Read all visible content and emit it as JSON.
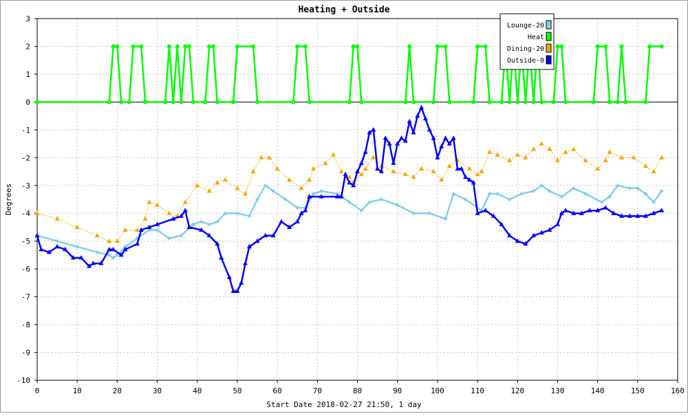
{
  "chart_data": {
    "type": "line",
    "title": "Heating + Outside",
    "xlabel": "Start Date 2018-02-27 21:50, 1 day",
    "ylabel": "Degrees",
    "xlim": [
      0,
      160
    ],
    "ylim": [
      -10,
      3
    ],
    "xticks": [
      0,
      10,
      20,
      30,
      40,
      50,
      60,
      70,
      80,
      90,
      100,
      110,
      120,
      130,
      140,
      150,
      160
    ],
    "yticks": [
      3,
      2,
      1,
      0,
      -1,
      -2,
      -3,
      -4,
      -5,
      -6,
      -7,
      -8,
      -9,
      -10
    ],
    "grid": true,
    "legend_position": "top-right",
    "series": [
      {
        "name": "Lounge-20",
        "color": "#87ceeb",
        "marker": "diamond",
        "line": "solid",
        "points": [
          [
            0,
            -4.8
          ],
          [
            5,
            -5.0
          ],
          [
            10,
            -5.2
          ],
          [
            15,
            -5.4
          ],
          [
            18,
            -5.5
          ],
          [
            19,
            -5.6
          ],
          [
            20,
            -5.5
          ],
          [
            22,
            -5.2
          ],
          [
            25,
            -4.9
          ],
          [
            28,
            -4.6
          ],
          [
            30,
            -4.6
          ],
          [
            33,
            -4.9
          ],
          [
            36,
            -4.8
          ],
          [
            39,
            -4.4
          ],
          [
            41,
            -4.3
          ],
          [
            43,
            -4.4
          ],
          [
            45,
            -4.3
          ],
          [
            47,
            -4.0
          ],
          [
            50,
            -4.0
          ],
          [
            53,
            -4.1
          ],
          [
            55,
            -3.5
          ],
          [
            57,
            -3.0
          ],
          [
            59,
            -3.2
          ],
          [
            62,
            -3.5
          ],
          [
            65,
            -3.8
          ],
          [
            67,
            -3.8
          ],
          [
            69,
            -3.3
          ],
          [
            71,
            -3.2
          ],
          [
            75,
            -3.3
          ],
          [
            78,
            -3.6
          ],
          [
            81,
            -3.9
          ],
          [
            83,
            -3.6
          ],
          [
            86,
            -3.5
          ],
          [
            90,
            -3.7
          ],
          [
            94,
            -4.0
          ],
          [
            98,
            -4.0
          ],
          [
            102,
            -4.2
          ],
          [
            104,
            -3.3
          ],
          [
            107,
            -3.5
          ],
          [
            111,
            -3.9
          ],
          [
            113,
            -3.3
          ],
          [
            115,
            -3.3
          ],
          [
            118,
            -3.5
          ],
          [
            121,
            -3.3
          ],
          [
            124,
            -3.2
          ],
          [
            126,
            -3.0
          ],
          [
            128,
            -3.2
          ],
          [
            131,
            -3.4
          ],
          [
            134,
            -3.1
          ],
          [
            137,
            -3.3
          ],
          [
            141,
            -3.6
          ],
          [
            143,
            -3.4
          ],
          [
            145,
            -3.0
          ],
          [
            148,
            -3.1
          ],
          [
            150,
            -3.1
          ],
          [
            152,
            -3.3
          ],
          [
            154,
            -3.6
          ],
          [
            156,
            -3.2
          ]
        ]
      },
      {
        "name": "Heat",
        "color": "#00ff00",
        "marker": "circle",
        "line": "solid",
        "points": [
          [
            0,
            0
          ],
          [
            18,
            0
          ],
          [
            19,
            2
          ],
          [
            20,
            2
          ],
          [
            21,
            0
          ],
          [
            23,
            0
          ],
          [
            24,
            2
          ],
          [
            26,
            2
          ],
          [
            27,
            0
          ],
          [
            32,
            0
          ],
          [
            33,
            2
          ],
          [
            34,
            0
          ],
          [
            35,
            2
          ],
          [
            36,
            0
          ],
          [
            37,
            2
          ],
          [
            38,
            2
          ],
          [
            39,
            0
          ],
          [
            42,
            0
          ],
          [
            43,
            2
          ],
          [
            44,
            2
          ],
          [
            45,
            0
          ],
          [
            49,
            0
          ],
          [
            50,
            2
          ],
          [
            54,
            2
          ],
          [
            55,
            0
          ],
          [
            64,
            0
          ],
          [
            65,
            2
          ],
          [
            67,
            2
          ],
          [
            68,
            0
          ],
          [
            78,
            0
          ],
          [
            79,
            2
          ],
          [
            80,
            2
          ],
          [
            81,
            0
          ],
          [
            92,
            0
          ],
          [
            93,
            2
          ],
          [
            94,
            0
          ],
          [
            99,
            0
          ],
          [
            100,
            2
          ],
          [
            102,
            2
          ],
          [
            103,
            0
          ],
          [
            109,
            0
          ],
          [
            110,
            2
          ],
          [
            112,
            2
          ],
          [
            113,
            0
          ],
          [
            116,
            0
          ],
          [
            117,
            2
          ],
          [
            118,
            0
          ],
          [
            119,
            2
          ],
          [
            120,
            0
          ],
          [
            121,
            2
          ],
          [
            122,
            0
          ],
          [
            123,
            2
          ],
          [
            124,
            0
          ],
          [
            125,
            2
          ],
          [
            126,
            0
          ],
          [
            129,
            0
          ],
          [
            130,
            2
          ],
          [
            131,
            2
          ],
          [
            132,
            0
          ],
          [
            139,
            0
          ],
          [
            140,
            2
          ],
          [
            142,
            2
          ],
          [
            143,
            0
          ],
          [
            145,
            0
          ],
          [
            146,
            2
          ],
          [
            147,
            0
          ],
          [
            152,
            0
          ],
          [
            153,
            2
          ],
          [
            156,
            2
          ]
        ]
      },
      {
        "name": "Dining-20",
        "color": "#ffa500",
        "marker": "triangle",
        "line": "dotted",
        "points": [
          [
            0,
            -4.0
          ],
          [
            5,
            -4.2
          ],
          [
            10,
            -4.5
          ],
          [
            15,
            -4.8
          ],
          [
            18,
            -5.0
          ],
          [
            20,
            -5.0
          ],
          [
            22,
            -4.6
          ],
          [
            25,
            -4.6
          ],
          [
            27,
            -4.2
          ],
          [
            28,
            -3.6
          ],
          [
            30,
            -3.7
          ],
          [
            33,
            -4.0
          ],
          [
            35,
            -4.1
          ],
          [
            37,
            -3.6
          ],
          [
            40,
            -3.0
          ],
          [
            43,
            -3.2
          ],
          [
            45,
            -2.9
          ],
          [
            47,
            -2.8
          ],
          [
            50,
            -3.1
          ],
          [
            52,
            -3.3
          ],
          [
            54,
            -2.5
          ],
          [
            56,
            -2.0
          ],
          [
            58,
            -2.0
          ],
          [
            60,
            -2.4
          ],
          [
            63,
            -2.8
          ],
          [
            66,
            -3.1
          ],
          [
            68,
            -2.8
          ],
          [
            69,
            -2.4
          ],
          [
            72,
            -2.2
          ],
          [
            74,
            -1.9
          ],
          [
            76,
            -2.5
          ],
          [
            78,
            -2.7
          ],
          [
            79,
            -2.9
          ],
          [
            81,
            -2.6
          ],
          [
            82,
            -2.4
          ],
          [
            84,
            -2.0
          ],
          [
            86,
            -2.3
          ],
          [
            89,
            -2.5
          ],
          [
            92,
            -2.6
          ],
          [
            94,
            -2.7
          ],
          [
            96,
            -2.4
          ],
          [
            99,
            -2.5
          ],
          [
            101,
            -2.8
          ],
          [
            103,
            -2.3
          ],
          [
            105,
            -2.1
          ],
          [
            108,
            -2.4
          ],
          [
            110,
            -2.6
          ],
          [
            111,
            -2.5
          ],
          [
            113,
            -1.8
          ],
          [
            115,
            -1.9
          ],
          [
            118,
            -2.1
          ],
          [
            120,
            -1.9
          ],
          [
            122,
            -2.0
          ],
          [
            124,
            -1.7
          ],
          [
            126,
            -1.5
          ],
          [
            128,
            -1.7
          ],
          [
            130,
            -2.1
          ],
          [
            132,
            -1.8
          ],
          [
            134,
            -1.7
          ],
          [
            137,
            -2.1
          ],
          [
            140,
            -2.4
          ],
          [
            142,
            -2.1
          ],
          [
            143,
            -1.8
          ],
          [
            146,
            -2.0
          ],
          [
            149,
            -2.0
          ],
          [
            152,
            -2.3
          ],
          [
            154,
            -2.5
          ],
          [
            156,
            -2.0
          ]
        ]
      },
      {
        "name": "Outside-0",
        "color": "#0000ff",
        "marker": "triangle",
        "line": "solid",
        "points": [
          [
            0,
            -4.8
          ],
          [
            1,
            -5.3
          ],
          [
            3,
            -5.4
          ],
          [
            5,
            -5.2
          ],
          [
            7,
            -5.3
          ],
          [
            9,
            -5.6
          ],
          [
            11,
            -5.6
          ],
          [
            13,
            -5.9
          ],
          [
            14,
            -5.8
          ],
          [
            16,
            -5.8
          ],
          [
            18,
            -5.3
          ],
          [
            19,
            -5.3
          ],
          [
            21,
            -5.5
          ],
          [
            22,
            -5.3
          ],
          [
            25,
            -5.1
          ],
          [
            26,
            -4.6
          ],
          [
            28,
            -4.5
          ],
          [
            30,
            -4.4
          ],
          [
            34,
            -4.2
          ],
          [
            36,
            -4.1
          ],
          [
            37,
            -3.9
          ],
          [
            38,
            -4.5
          ],
          [
            41,
            -4.6
          ],
          [
            43,
            -4.8
          ],
          [
            45,
            -5.1
          ],
          [
            46,
            -5.6
          ],
          [
            48,
            -6.3
          ],
          [
            49,
            -6.8
          ],
          [
            50,
            -6.8
          ],
          [
            51,
            -6.5
          ],
          [
            52,
            -5.8
          ],
          [
            53,
            -5.2
          ],
          [
            55,
            -5.0
          ],
          [
            57,
            -4.8
          ],
          [
            59,
            -4.8
          ],
          [
            61,
            -4.3
          ],
          [
            63,
            -4.5
          ],
          [
            65,
            -4.3
          ],
          [
            66,
            -4.0
          ],
          [
            67,
            -3.9
          ],
          [
            68,
            -3.4
          ],
          [
            71,
            -3.4
          ],
          [
            75,
            -3.4
          ],
          [
            76,
            -3.4
          ],
          [
            77,
            -2.6
          ],
          [
            78,
            -2.9
          ],
          [
            79,
            -3.0
          ],
          [
            80,
            -2.5
          ],
          [
            81,
            -2.2
          ],
          [
            82,
            -1.8
          ],
          [
            83,
            -1.1
          ],
          [
            84,
            -1.0
          ],
          [
            85,
            -2.4
          ],
          [
            86,
            -2.5
          ],
          [
            87,
            -1.3
          ],
          [
            88,
            -1.5
          ],
          [
            89,
            -2.2
          ],
          [
            90,
            -1.5
          ],
          [
            91,
            -1.3
          ],
          [
            92,
            -1.4
          ],
          [
            93,
            -0.7
          ],
          [
            94,
            -1.1
          ],
          [
            95,
            -0.5
          ],
          [
            96,
            -0.2
          ],
          [
            97,
            -0.6
          ],
          [
            98,
            -1.0
          ],
          [
            99,
            -1.3
          ],
          [
            100,
            -2.0
          ],
          [
            101,
            -1.6
          ],
          [
            102,
            -1.3
          ],
          [
            103,
            -1.5
          ],
          [
            104,
            -1.3
          ],
          [
            105,
            -2.4
          ],
          [
            106,
            -2.4
          ],
          [
            107,
            -2.7
          ],
          [
            108,
            -2.8
          ],
          [
            109,
            -2.9
          ],
          [
            110,
            -4.0
          ],
          [
            112,
            -3.9
          ],
          [
            114,
            -4.1
          ],
          [
            116,
            -4.4
          ],
          [
            118,
            -4.8
          ],
          [
            120,
            -5.0
          ],
          [
            122,
            -5.1
          ],
          [
            124,
            -4.8
          ],
          [
            126,
            -4.7
          ],
          [
            128,
            -4.6
          ],
          [
            130,
            -4.4
          ],
          [
            131,
            -4.0
          ],
          [
            132,
            -3.9
          ],
          [
            134,
            -4.0
          ],
          [
            136,
            -4.0
          ],
          [
            138,
            -3.9
          ],
          [
            140,
            -3.9
          ],
          [
            142,
            -3.8
          ],
          [
            144,
            -4.0
          ],
          [
            146,
            -4.1
          ],
          [
            148,
            -4.1
          ],
          [
            150,
            -4.1
          ],
          [
            152,
            -4.1
          ],
          [
            154,
            -4.0
          ],
          [
            156,
            -3.9
          ]
        ]
      }
    ]
  }
}
